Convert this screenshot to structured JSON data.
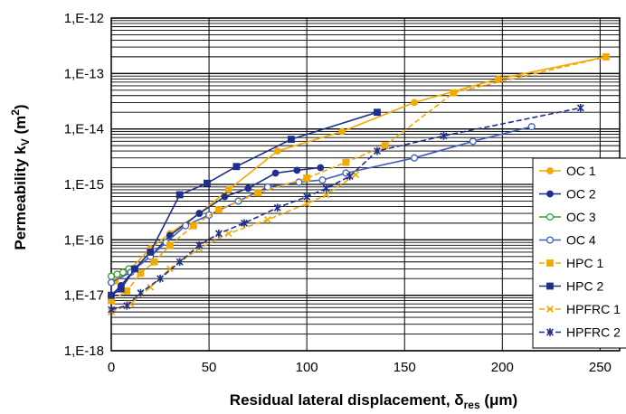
{
  "chart_data": {
    "type": "line",
    "xlabel": "Residual lateral displacement, δres (μm)",
    "xlabel_main": "Residual lateral displacement, δ",
    "xlabel_sub": "res",
    "xlabel_tail": " (μm)",
    "ylabel_main": "Permeability k",
    "ylabel_sub": "V",
    "ylabel_tail": " (m",
    "ylabel_sup": "2",
    "ylabel_close": ")",
    "ylabel": "Permeability kV (m2)",
    "y_scale": "log",
    "xlim": [
      0,
      260
    ],
    "ylim": [
      1e-18,
      1e-12
    ],
    "x_ticks": [
      0,
      50,
      100,
      150,
      200,
      250
    ],
    "y_ticks": [
      {
        "value": 1e-12,
        "label": "1,E-12"
      },
      {
        "value": 1e-13,
        "label": "1,E-13"
      },
      {
        "value": 1e-14,
        "label": "1,E-14"
      },
      {
        "value": 1e-15,
        "label": "1,E-15"
      },
      {
        "value": 1e-16,
        "label": "1,E-16"
      },
      {
        "value": 1e-17,
        "label": "1,E-17"
      },
      {
        "value": 1e-18,
        "label": "1,E-18"
      }
    ],
    "grid": true,
    "legend_position": "right",
    "series": [
      {
        "name": "OC 1",
        "color": "#F2A900",
        "marker": "circle-filled",
        "dashed": false,
        "points": [
          [
            2,
            1.8e-17
          ],
          [
            10,
            3e-17
          ],
          [
            20,
            7e-17
          ],
          [
            30,
            1.3e-16
          ],
          [
            45,
            3e-16
          ],
          [
            60,
            8e-16
          ],
          [
            85,
            4e-15
          ],
          [
            118,
            9e-15
          ],
          [
            155,
            3e-14
          ],
          [
            198,
            8e-14
          ],
          [
            253,
            2e-13
          ]
        ]
      },
      {
        "name": "OC 2",
        "color": "#1E2F8C",
        "marker": "circle-filled",
        "dashed": false,
        "points": [
          [
            0,
            1e-17
          ],
          [
            5,
            1.5e-17
          ],
          [
            12,
            3e-17
          ],
          [
            20,
            5e-17
          ],
          [
            30,
            1.2e-16
          ],
          [
            45,
            3e-16
          ],
          [
            58,
            6e-16
          ],
          [
            70,
            8.5e-16
          ],
          [
            84,
            1.6e-15
          ],
          [
            95,
            1.8e-15
          ],
          [
            107,
            2e-15
          ]
        ]
      },
      {
        "name": "OC 3",
        "color": "#3A9E3A",
        "marker": "circle-open",
        "dashed": false,
        "points": [
          [
            0,
            2.2e-17
          ],
          [
            3,
            2.4e-17
          ],
          [
            6,
            2.6e-17
          ],
          [
            9,
            3e-17
          ]
        ]
      },
      {
        "name": "OC 4",
        "color": "#3E5DBF",
        "marker": "circle-open",
        "dashed": false,
        "points": [
          [
            0,
            1.7e-17
          ],
          [
            10,
            2.6e-17
          ],
          [
            20,
            5e-17
          ],
          [
            28,
            9e-17
          ],
          [
            38,
            1.8e-16
          ],
          [
            50,
            2.8e-16
          ],
          [
            65,
            5e-16
          ],
          [
            80,
            9e-16
          ],
          [
            96,
            1.1e-15
          ],
          [
            108,
            1.2e-15
          ],
          [
            120,
            1.6e-15
          ],
          [
            155,
            3e-15
          ],
          [
            185,
            6e-15
          ],
          [
            215,
            1.1e-14
          ]
        ]
      },
      {
        "name": "HPC 1",
        "color": "#F2A900",
        "marker": "square-filled",
        "dashed": true,
        "points": [
          [
            0,
            8e-18
          ],
          [
            8,
            1.2e-17
          ],
          [
            15,
            2.5e-17
          ],
          [
            22,
            4e-17
          ],
          [
            30,
            8e-17
          ],
          [
            42,
            1.8e-16
          ],
          [
            55,
            3.5e-16
          ],
          [
            75,
            7e-16
          ],
          [
            100,
            1.3e-15
          ],
          [
            120,
            2.5e-15
          ],
          [
            140,
            5e-15
          ],
          [
            175,
            4.5e-14
          ],
          [
            253,
            2e-13
          ]
        ]
      },
      {
        "name": "HPC 2",
        "color": "#1E2F8C",
        "marker": "square-filled",
        "dashed": false,
        "points": [
          [
            0,
            1e-17
          ],
          [
            5,
            1.3e-17
          ],
          [
            12,
            3e-17
          ],
          [
            20,
            6e-17
          ],
          [
            35,
            6.5e-16
          ],
          [
            49,
            1.05e-15
          ],
          [
            64,
            2.1e-15
          ],
          [
            92,
            6.5e-15
          ],
          [
            136,
            2e-14
          ]
        ]
      },
      {
        "name": "HPFRC 1",
        "color": "#F2A900",
        "marker": "x",
        "dashed": true,
        "points": [
          [
            0,
            5e-18
          ],
          [
            10,
            7e-18
          ],
          [
            20,
            1.4e-17
          ],
          [
            30,
            3e-17
          ],
          [
            45,
            7e-17
          ],
          [
            60,
            1.3e-16
          ],
          [
            80,
            2.3e-16
          ],
          [
            100,
            4.5e-16
          ],
          [
            110,
            6.5e-16
          ],
          [
            125,
            1.5e-15
          ]
        ]
      },
      {
        "name": "HPFRC 2",
        "color": "#1E2F8C",
        "marker": "asterisk",
        "dashed": true,
        "points": [
          [
            0,
            5.5e-18
          ],
          [
            8,
            6.5e-18
          ],
          [
            15,
            1.1e-17
          ],
          [
            25,
            2e-17
          ],
          [
            35,
            4e-17
          ],
          [
            45,
            8e-17
          ],
          [
            55,
            1.3e-16
          ],
          [
            68,
            2e-16
          ],
          [
            85,
            3.8e-16
          ],
          [
            100,
            6e-16
          ],
          [
            110,
            8.5e-16
          ],
          [
            122,
            1.4e-15
          ],
          [
            136,
            4e-15
          ],
          [
            170,
            7.5e-15
          ],
          [
            240,
            2.4e-14
          ]
        ]
      }
    ]
  }
}
